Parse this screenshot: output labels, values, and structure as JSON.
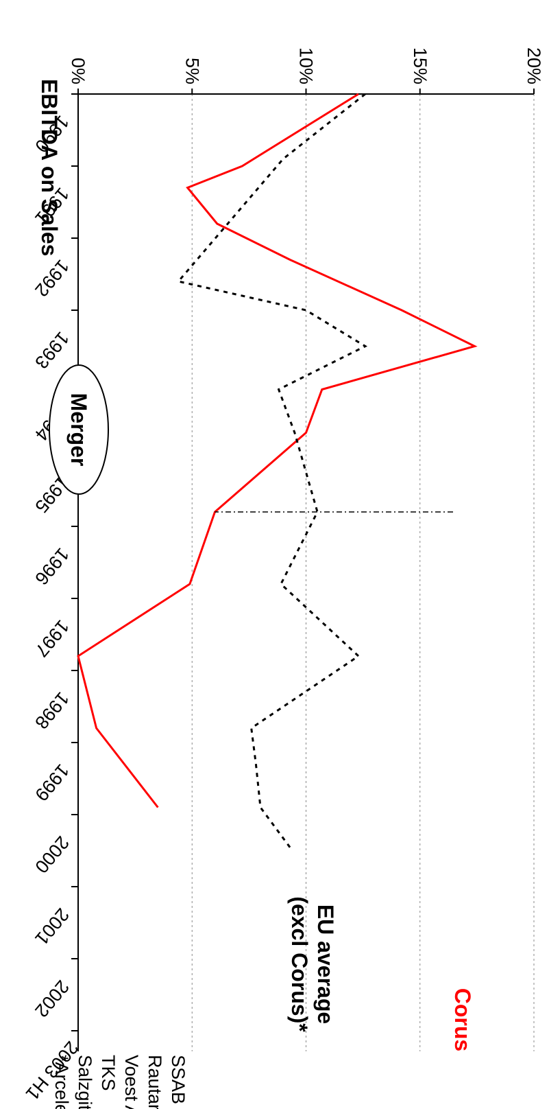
{
  "chart_data": {
    "type": "line",
    "title": "EBITDA on Sales",
    "x": [
      "1990",
      "1991",
      "1992",
      "1993",
      "1994",
      "1995",
      "1996",
      "1997",
      "1998",
      "1999",
      "2000",
      "2001",
      "2002",
      "2003 H1"
    ],
    "y_ticks": [
      "0%",
      "5%",
      "10%",
      "15%",
      "20%"
    ],
    "ylim": [
      0,
      20
    ],
    "grid": true,
    "series": [
      {
        "name": "Corus",
        "color": "#ff0000",
        "style": "solid",
        "points": [
          {
            "x": 0.0,
            "y": 12.3
          },
          {
            "x": 1.0,
            "y": 7.2
          },
          {
            "x": 1.3,
            "y": 4.8
          },
          {
            "x": 1.8,
            "y": 6.1
          },
          {
            "x": 2.3,
            "y": 9.3
          },
          {
            "x": 3.0,
            "y": 14.2
          },
          {
            "x": 3.5,
            "y": 17.4
          },
          {
            "x": 4.1,
            "y": 10.7
          },
          {
            "x": 4.7,
            "y": 10.0
          },
          {
            "x": 5.8,
            "y": 6.0
          },
          {
            "x": 6.8,
            "y": 4.9
          },
          {
            "x": 7.8,
            "y": 0.0
          },
          {
            "x": 8.8,
            "y": 0.8
          },
          {
            "x": 9.9,
            "y": 3.5
          }
        ]
      },
      {
        "name": "EU average (excl Corus)*",
        "color": "#000000",
        "style": "dashed",
        "points": [
          {
            "x": 0.0,
            "y": 12.6
          },
          {
            "x": 0.9,
            "y": 9.0
          },
          {
            "x": 2.6,
            "y": 4.4
          },
          {
            "x": 3.0,
            "y": 10.0
          },
          {
            "x": 3.5,
            "y": 12.6
          },
          {
            "x": 4.1,
            "y": 8.8
          },
          {
            "x": 4.7,
            "y": 9.5
          },
          {
            "x": 5.8,
            "y": 10.5
          },
          {
            "x": 6.8,
            "y": 8.9
          },
          {
            "x": 7.8,
            "y": 12.3
          },
          {
            "x": 8.8,
            "y": 7.6
          },
          {
            "x": 9.3,
            "y": 7.8
          },
          {
            "x": 9.9,
            "y": 8.0
          },
          {
            "x": 10.5,
            "y": 9.4
          }
        ]
      }
    ],
    "legend": {
      "corus_label": "Corus",
      "eu_label_line1": "EU average",
      "eu_label_line2": "(excl Corus)*"
    },
    "annotation": {
      "label": "Merger",
      "x": 5.8
    },
    "footnote": [
      "*Arceleor",
      "Salzgitter",
      "TKS",
      "Voest Alpine",
      "Rautaruukki",
      "SSAB"
    ]
  }
}
